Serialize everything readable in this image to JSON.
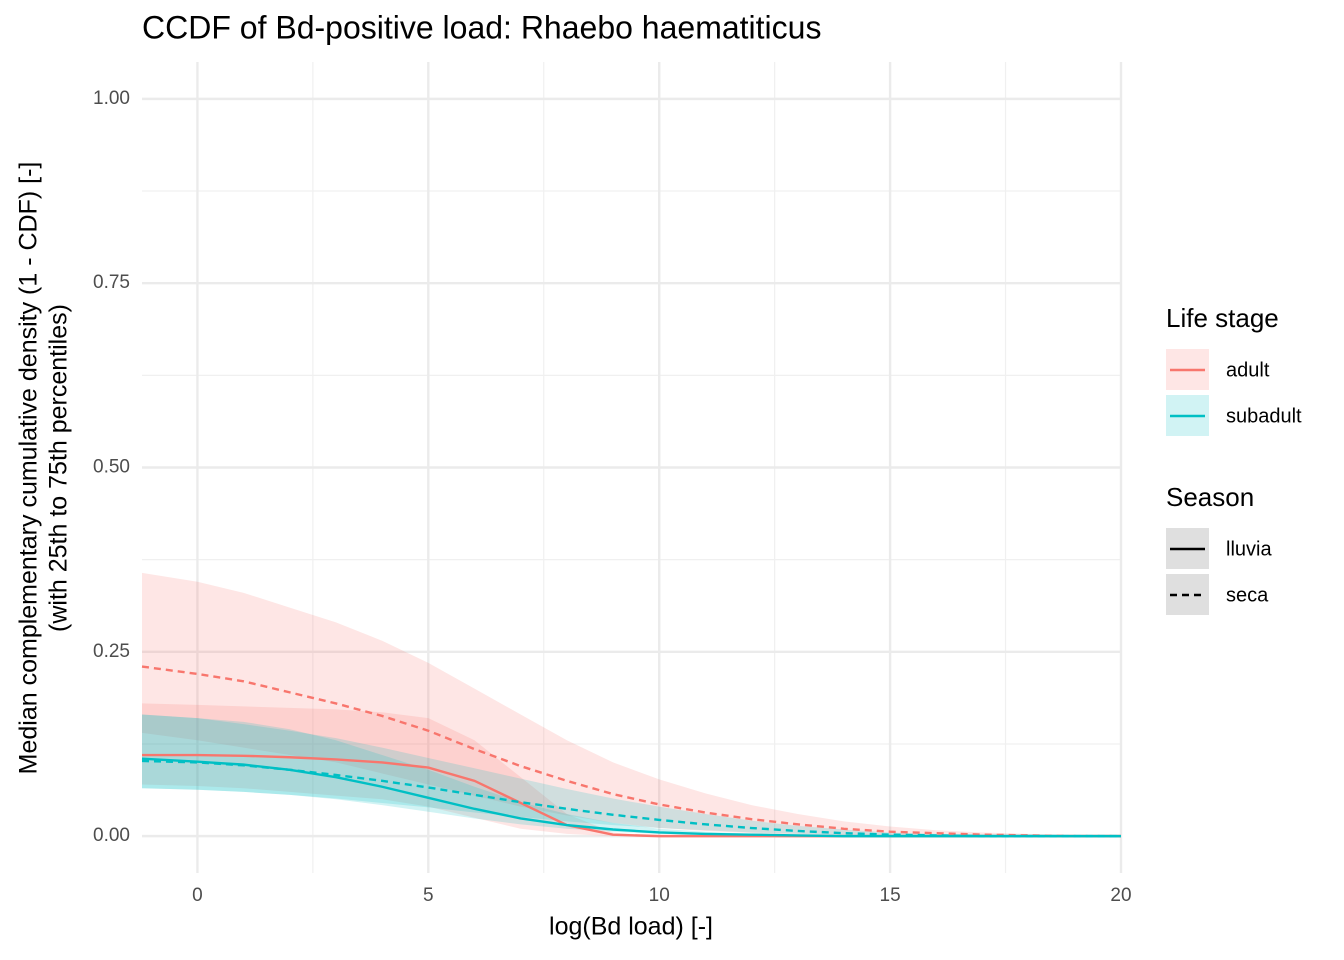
{
  "chart_data": {
    "type": "line",
    "title": "CCDF of Bd-positive load: Rhaebo haematiticus",
    "x_label": "log(Bd load) [-]",
    "y_label": [
      "Median complementary cumulative density (1 - CDF) [-]",
      "(with 25th to 75th percentiles)"
    ],
    "xlim": [
      -1.2,
      20
    ],
    "ylim": [
      -0.05,
      1.05
    ],
    "xticks": [
      0,
      5,
      10,
      15,
      20
    ],
    "yticks": [
      {
        "value": 0,
        "label": "0.00"
      },
      {
        "value": 0.25,
        "label": "0.25"
      },
      {
        "value": 0.5,
        "label": "0.50"
      },
      {
        "value": 0.75,
        "label": "0.75"
      },
      {
        "value": 1,
        "label": "1.00"
      }
    ],
    "grid": true,
    "x": [
      -1.2,
      0,
      1,
      2,
      3,
      4,
      5,
      6,
      7,
      8,
      9,
      10,
      11,
      12,
      13,
      14,
      15,
      16,
      17,
      18,
      19,
      20
    ],
    "legends": [
      {
        "title": "Life stage",
        "entries": [
          {
            "label": "adult",
            "color": "#f8766d"
          },
          {
            "label": "subadult",
            "color": "#00bfc4"
          }
        ]
      },
      {
        "title": "Season",
        "entries": [
          {
            "label": "lluvia",
            "dash": "solid"
          },
          {
            "label": "seca",
            "dash": "dashed"
          }
        ]
      }
    ],
    "series": [
      {
        "stage": "adult",
        "season": "seca",
        "color": "#f8766d",
        "dash": "dashed",
        "values": [
          0.23,
          0.22,
          0.21,
          0.195,
          0.18,
          0.163,
          0.143,
          0.118,
          0.095,
          0.075,
          0.057,
          0.043,
          0.032,
          0.023,
          0.016,
          0.01,
          0.006,
          0.004,
          0.002,
          0.001,
          0,
          0
        ],
        "upper": [
          0.357,
          0.345,
          0.33,
          0.31,
          0.29,
          0.265,
          0.235,
          0.2,
          0.165,
          0.13,
          0.1,
          0.077,
          0.058,
          0.042,
          0.03,
          0.02,
          0.013,
          0.008,
          0.005,
          0.003,
          0.001,
          0
        ],
        "lower": [
          0.14,
          0.13,
          0.12,
          0.11,
          0.1,
          0.085,
          0.07,
          0.055,
          0.04,
          0.028,
          0.018,
          0.011,
          0.007,
          0.004,
          0.002,
          0.001,
          0,
          0,
          0,
          0,
          0,
          0
        ]
      },
      {
        "stage": "adult",
        "season": "lluvia",
        "color": "#f8766d",
        "dash": "solid",
        "values": [
          0.11,
          0.11,
          0.109,
          0.107,
          0.104,
          0.1,
          0.093,
          0.075,
          0.045,
          0.015,
          0.002,
          0,
          0,
          0,
          0,
          0,
          0,
          0,
          0,
          0,
          0,
          0
        ],
        "upper": [
          0.18,
          0.178,
          0.176,
          0.174,
          0.172,
          0.168,
          0.16,
          0.13,
          0.08,
          0.03,
          0.005,
          0,
          0,
          0,
          0,
          0,
          0,
          0,
          0,
          0,
          0,
          0
        ],
        "lower": [
          0.07,
          0.068,
          0.065,
          0.06,
          0.055,
          0.05,
          0.04,
          0.025,
          0.01,
          0.003,
          0,
          0,
          0,
          0,
          0,
          0,
          0,
          0,
          0,
          0,
          0,
          0
        ]
      },
      {
        "stage": "subadult",
        "season": "seca",
        "color": "#00bfc4",
        "dash": "dashed",
        "values": [
          0.102,
          0.1,
          0.096,
          0.09,
          0.083,
          0.075,
          0.066,
          0.056,
          0.046,
          0.037,
          0.029,
          0.022,
          0.016,
          0.011,
          0.007,
          0.004,
          0.002,
          0.001,
          0,
          0,
          0,
          0
        ],
        "upper": [
          0.165,
          0.16,
          0.152,
          0.143,
          0.133,
          0.12,
          0.106,
          0.092,
          0.078,
          0.064,
          0.051,
          0.04,
          0.03,
          0.021,
          0.014,
          0.009,
          0.005,
          0.003,
          0.002,
          0.001,
          0,
          0
        ],
        "lower": [
          0.065,
          0.063,
          0.06,
          0.056,
          0.051,
          0.045,
          0.039,
          0.032,
          0.026,
          0.02,
          0.015,
          0.011,
          0.008,
          0.005,
          0.003,
          0.002,
          0.001,
          0,
          0,
          0,
          0,
          0
        ]
      },
      {
        "stage": "subadult",
        "season": "lluvia",
        "color": "#00bfc4",
        "dash": "solid",
        "values": [
          0.105,
          0.101,
          0.097,
          0.09,
          0.08,
          0.067,
          0.052,
          0.037,
          0.024,
          0.015,
          0.009,
          0.005,
          0.003,
          0.002,
          0.001,
          0,
          0,
          0,
          0,
          0,
          0,
          0
        ],
        "upper": [
          0.165,
          0.16,
          0.155,
          0.145,
          0.13,
          0.11,
          0.09,
          0.067,
          0.046,
          0.03,
          0.018,
          0.01,
          0.006,
          0.003,
          0.002,
          0.001,
          0,
          0,
          0,
          0,
          0,
          0
        ],
        "lower": [
          0.065,
          0.063,
          0.06,
          0.056,
          0.05,
          0.042,
          0.033,
          0.024,
          0.016,
          0.01,
          0.006,
          0.003,
          0.002,
          0.001,
          0,
          0,
          0,
          0,
          0,
          0,
          0,
          0
        ]
      }
    ]
  }
}
